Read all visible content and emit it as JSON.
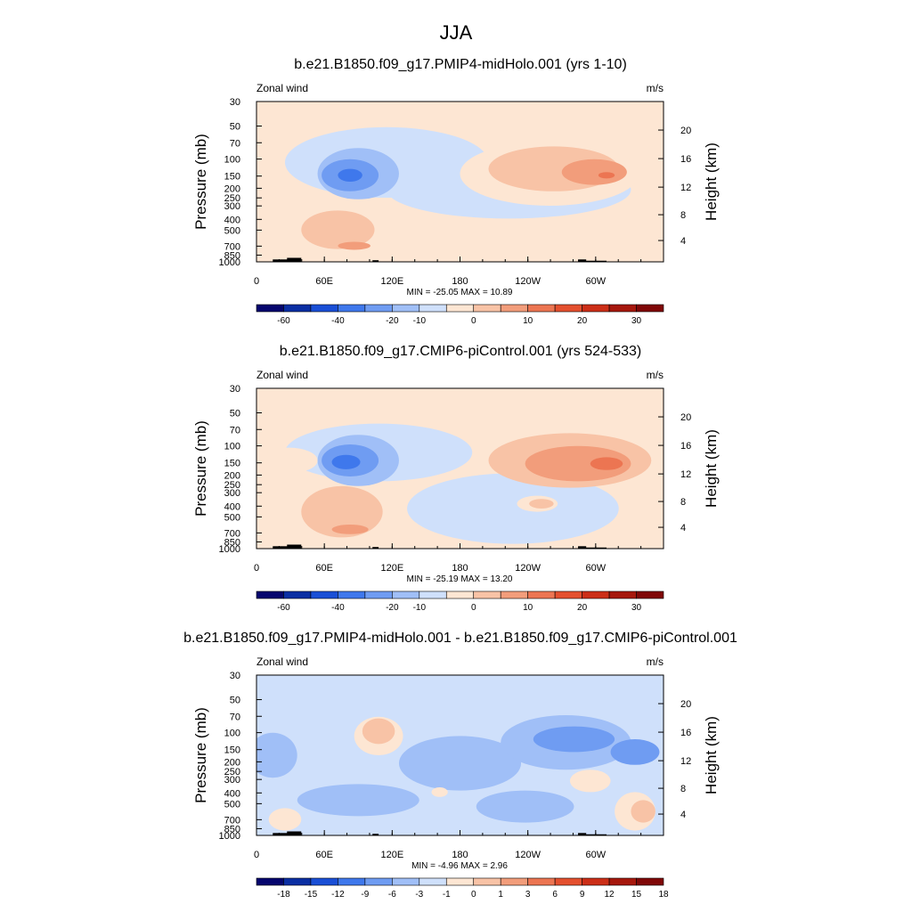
{
  "figure": {
    "title": "JJA"
  },
  "palette": {
    "land": "#000000",
    "frame": "#000000"
  },
  "chart_data": [
    {
      "type": "heatmap",
      "title": "b.e21.B1850.f09_g17.PMIP4-midHolo.001 (yrs 1-10)",
      "variable_label": "Zonal wind",
      "units": "m/s",
      "ylabel": "Pressure (mb)",
      "ylabel_right": "Height (km)",
      "x_ticks": [
        "0",
        "60E",
        "120E",
        "180",
        "120W",
        "60W"
      ],
      "y_ticks": [
        "30",
        "50",
        "70",
        "100",
        "150",
        "200",
        "250",
        "300",
        "400",
        "500",
        "700",
        "850",
        "1000"
      ],
      "height_ticks": [
        "20",
        "16",
        "12",
        "8",
        "4"
      ],
      "stats": "MIN = -25.05  MAX =  10.89",
      "colorbar": {
        "labels": [
          "-60",
          "-40",
          "-20",
          "-10",
          "0",
          "10",
          "20",
          "30"
        ],
        "colors": [
          "#06066e",
          "#0b2fa3",
          "#1a4fd6",
          "#3f78ec",
          "#6f9cf2",
          "#a0bff7",
          "#cfe0fb",
          "#fde6d3",
          "#f8c3a6",
          "#f29d7b",
          "#ec7552",
          "#e4502f",
          "#cc2f18",
          "#a6180d",
          "#800808"
        ]
      },
      "blobs": [
        {
          "color": "#cfe0fb",
          "cx": 0.32,
          "cy": 0.38,
          "rx": 0.25,
          "ry": 0.22
        },
        {
          "color": "#cfe0fb",
          "cx": 0.62,
          "cy": 0.55,
          "rx": 0.3,
          "ry": 0.18
        },
        {
          "color": "#a0bff7",
          "cx": 0.25,
          "cy": 0.45,
          "rx": 0.1,
          "ry": 0.16
        },
        {
          "color": "#6f9cf2",
          "cx": 0.23,
          "cy": 0.46,
          "rx": 0.07,
          "ry": 0.1
        },
        {
          "color": "#3f78ec",
          "cx": 0.23,
          "cy": 0.46,
          "rx": 0.03,
          "ry": 0.04
        },
        {
          "color": "#fde6d3",
          "cx": 0.72,
          "cy": 0.45,
          "rx": 0.22,
          "ry": 0.2
        },
        {
          "color": "#f8c3a6",
          "cx": 0.73,
          "cy": 0.42,
          "rx": 0.16,
          "ry": 0.14
        },
        {
          "color": "#f29d7b",
          "cx": 0.83,
          "cy": 0.44,
          "rx": 0.08,
          "ry": 0.08
        },
        {
          "color": "#ec7552",
          "cx": 0.86,
          "cy": 0.46,
          "rx": 0.02,
          "ry": 0.02
        },
        {
          "color": "#f8c3a6",
          "cx": 0.2,
          "cy": 0.8,
          "rx": 0.09,
          "ry": 0.12
        },
        {
          "color": "#f29d7b",
          "cx": 0.24,
          "cy": 0.9,
          "rx": 0.04,
          "ry": 0.025
        }
      ]
    },
    {
      "type": "heatmap",
      "title": "b.e21.B1850.f09_g17.CMIP6-piControl.001 (yrs 524-533)",
      "variable_label": "Zonal wind",
      "units": "m/s",
      "ylabel": "Pressure (mb)",
      "ylabel_right": "Height (km)",
      "x_ticks": [
        "0",
        "60E",
        "120E",
        "180",
        "120W",
        "60W"
      ],
      "y_ticks": [
        "30",
        "50",
        "70",
        "100",
        "150",
        "200",
        "250",
        "300",
        "400",
        "500",
        "700",
        "850",
        "1000"
      ],
      "height_ticks": [
        "20",
        "16",
        "12",
        "8",
        "4"
      ],
      "stats": "MIN = -25.19  MAX =  13.20",
      "colorbar": {
        "labels": [
          "-60",
          "-40",
          "-20",
          "-10",
          "0",
          "10",
          "20",
          "30"
        ],
        "colors": [
          "#06066e",
          "#0b2fa3",
          "#1a4fd6",
          "#3f78ec",
          "#6f9cf2",
          "#a0bff7",
          "#cfe0fb",
          "#fde6d3",
          "#f8c3a6",
          "#f29d7b",
          "#ec7552",
          "#e4502f",
          "#cc2f18",
          "#a6180d",
          "#800808"
        ]
      },
      "blobs": [
        {
          "color": "#cfe0fb",
          "cx": 0.3,
          "cy": 0.4,
          "rx": 0.23,
          "ry": 0.18
        },
        {
          "color": "#cfe0fb",
          "cx": 0.63,
          "cy": 0.75,
          "rx": 0.26,
          "ry": 0.22
        },
        {
          "color": "#a0bff7",
          "cx": 0.25,
          "cy": 0.45,
          "rx": 0.1,
          "ry": 0.16
        },
        {
          "color": "#6f9cf2",
          "cx": 0.23,
          "cy": 0.45,
          "rx": 0.07,
          "ry": 0.1
        },
        {
          "color": "#3f78ec",
          "cx": 0.22,
          "cy": 0.46,
          "rx": 0.035,
          "ry": 0.045
        },
        {
          "color": "#fde6d3",
          "cx": 0.08,
          "cy": 0.45,
          "rx": 0.07,
          "ry": 0.08
        },
        {
          "color": "#f8c3a6",
          "cx": 0.77,
          "cy": 0.45,
          "rx": 0.2,
          "ry": 0.17
        },
        {
          "color": "#f29d7b",
          "cx": 0.79,
          "cy": 0.47,
          "rx": 0.13,
          "ry": 0.11
        },
        {
          "color": "#ec7552",
          "cx": 0.86,
          "cy": 0.47,
          "rx": 0.04,
          "ry": 0.04
        },
        {
          "color": "#f8c3a6",
          "cx": 0.21,
          "cy": 0.77,
          "rx": 0.1,
          "ry": 0.16
        },
        {
          "color": "#f29d7b",
          "cx": 0.23,
          "cy": 0.88,
          "rx": 0.045,
          "ry": 0.03
        },
        {
          "color": "#fde6d3",
          "cx": 0.69,
          "cy": 0.72,
          "rx": 0.05,
          "ry": 0.05
        },
        {
          "color": "#f8c3a6",
          "cx": 0.7,
          "cy": 0.72,
          "rx": 0.03,
          "ry": 0.03
        }
      ]
    },
    {
      "type": "heatmap",
      "title": "b.e21.B1850.f09_g17.PMIP4-midHolo.001 - b.e21.B1850.f09_g17.CMIP6-piControl.001",
      "variable_label": "Zonal wind",
      "units": "m/s",
      "ylabel": "Pressure (mb)",
      "ylabel_right": "Height (km)",
      "x_ticks": [
        "0",
        "60E",
        "120E",
        "180",
        "120W",
        "60W"
      ],
      "y_ticks": [
        "30",
        "50",
        "70",
        "100",
        "150",
        "200",
        "250",
        "300",
        "400",
        "500",
        "700",
        "850",
        "1000"
      ],
      "height_ticks": [
        "20",
        "16",
        "12",
        "8",
        "4"
      ],
      "stats": "MIN = -4.96  MAX =  2.96",
      "colorbar": {
        "labels": [
          "-18",
          "-15",
          "-12",
          "-9",
          "-6",
          "-3",
          "-1",
          "0",
          "1",
          "3",
          "6",
          "9",
          "12",
          "15",
          "18"
        ],
        "colors": [
          "#06066e",
          "#0b2fa3",
          "#1a4fd6",
          "#3f78ec",
          "#6f9cf2",
          "#a0bff7",
          "#cfe0fb",
          "#fde6d3",
          "#f8c3a6",
          "#f29d7b",
          "#ec7552",
          "#e4502f",
          "#cc2f18",
          "#a6180d",
          "#800808"
        ]
      },
      "blobs": [
        {
          "color": "#a0bff7",
          "cx": 0.04,
          "cy": 0.5,
          "rx": 0.06,
          "ry": 0.14
        },
        {
          "color": "#a0bff7",
          "cx": 0.5,
          "cy": 0.55,
          "rx": 0.15,
          "ry": 0.17
        },
        {
          "color": "#a0bff7",
          "cx": 0.76,
          "cy": 0.42,
          "rx": 0.16,
          "ry": 0.17
        },
        {
          "color": "#6f9cf2",
          "cx": 0.78,
          "cy": 0.4,
          "rx": 0.1,
          "ry": 0.08
        },
        {
          "color": "#6f9cf2",
          "cx": 0.93,
          "cy": 0.48,
          "rx": 0.06,
          "ry": 0.08
        },
        {
          "color": "#a0bff7",
          "cx": 0.25,
          "cy": 0.78,
          "rx": 0.15,
          "ry": 0.1
        },
        {
          "color": "#a0bff7",
          "cx": 0.66,
          "cy": 0.82,
          "rx": 0.12,
          "ry": 0.1
        },
        {
          "color": "#fde6d3",
          "cx": 0.3,
          "cy": 0.38,
          "rx": 0.06,
          "ry": 0.12
        },
        {
          "color": "#f8c3a6",
          "cx": 0.3,
          "cy": 0.35,
          "rx": 0.04,
          "ry": 0.08
        },
        {
          "color": "#fde6d3",
          "cx": 0.82,
          "cy": 0.66,
          "rx": 0.05,
          "ry": 0.07
        },
        {
          "color": "#fde6d3",
          "cx": 0.93,
          "cy": 0.85,
          "rx": 0.05,
          "ry": 0.12
        },
        {
          "color": "#f8c3a6",
          "cx": 0.95,
          "cy": 0.85,
          "rx": 0.03,
          "ry": 0.07
        },
        {
          "color": "#fde6d3",
          "cx": 0.07,
          "cy": 0.9,
          "rx": 0.04,
          "ry": 0.07
        },
        {
          "color": "#fde6d3",
          "cx": 0.45,
          "cy": 0.73,
          "rx": 0.02,
          "ry": 0.03
        }
      ]
    }
  ]
}
